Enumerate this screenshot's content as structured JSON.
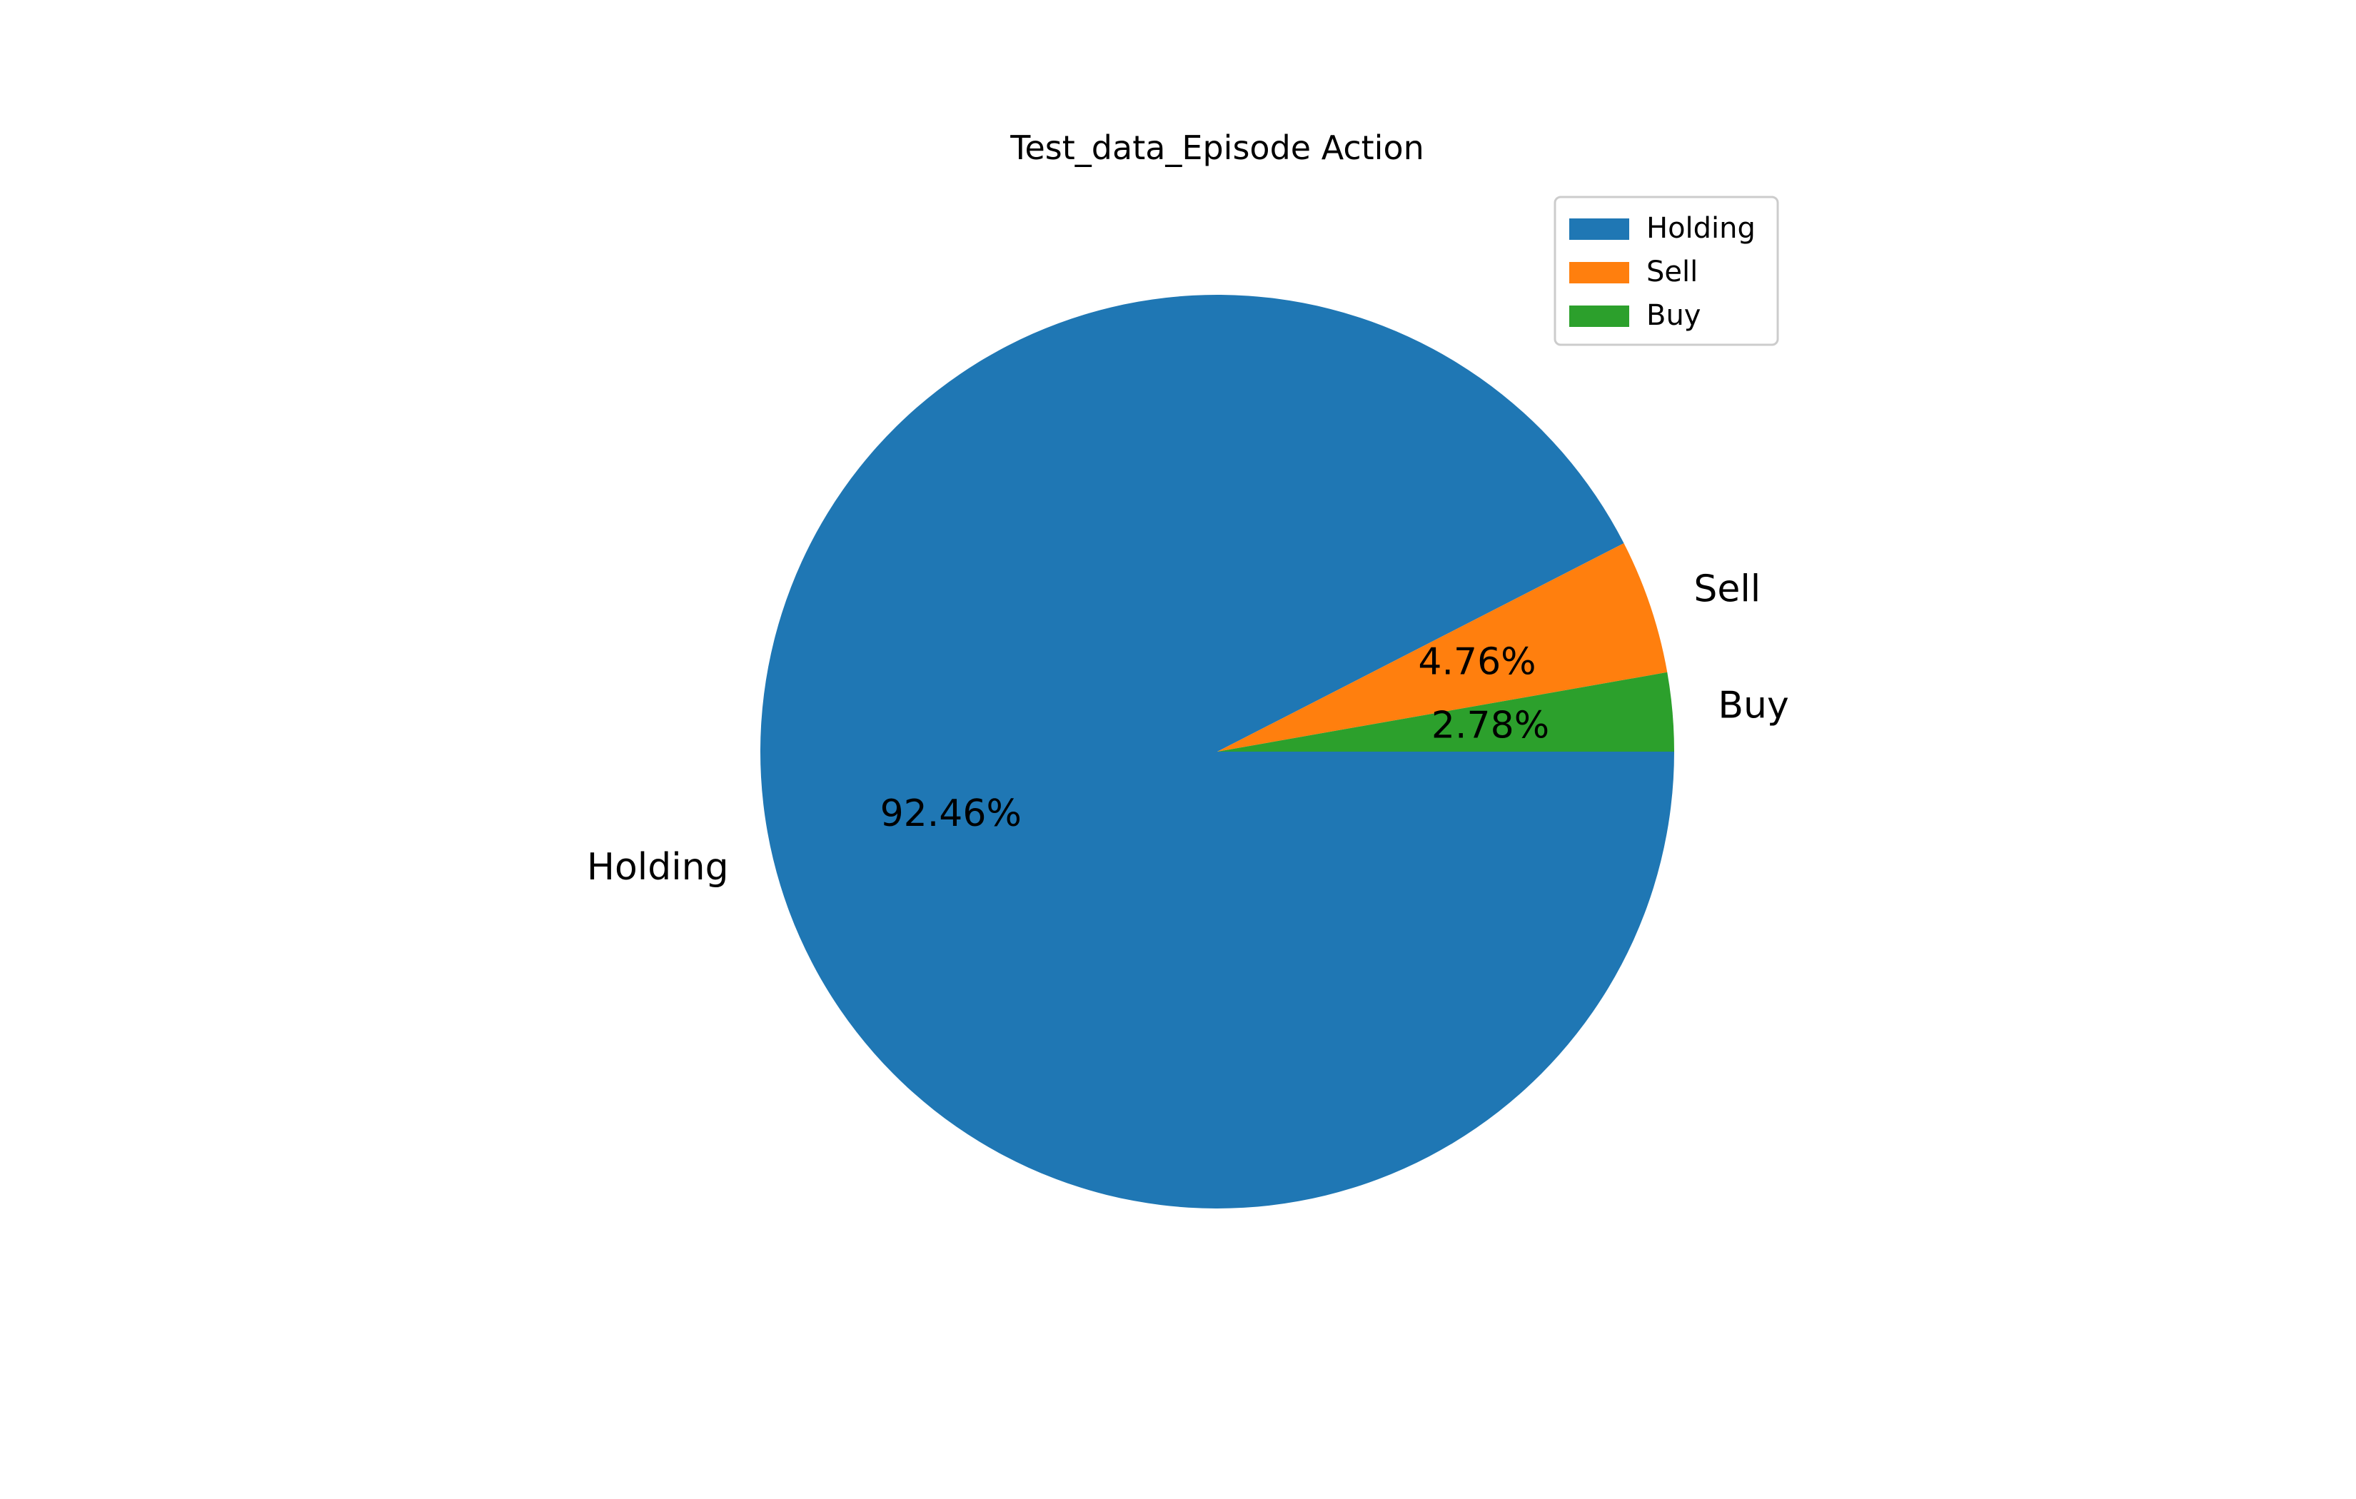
{
  "chart_data": {
    "type": "pie",
    "title": "Test_data_Episode Action",
    "slices": [
      {
        "label": "Holding",
        "value": 92.46,
        "pct_label": "92.46%",
        "color": "#1f77b4"
      },
      {
        "label": "Sell",
        "value": 4.76,
        "pct_label": "4.76%",
        "color": "#ff7f0e"
      },
      {
        "label": "Buy",
        "value": 2.78,
        "pct_label": "2.78%",
        "color": "#2ca02c"
      }
    ],
    "start_angle": 0,
    "direction": "clockwise",
    "legend": {
      "placement": "top-right",
      "entries": [
        "Holding",
        "Sell",
        "Buy"
      ]
    }
  }
}
